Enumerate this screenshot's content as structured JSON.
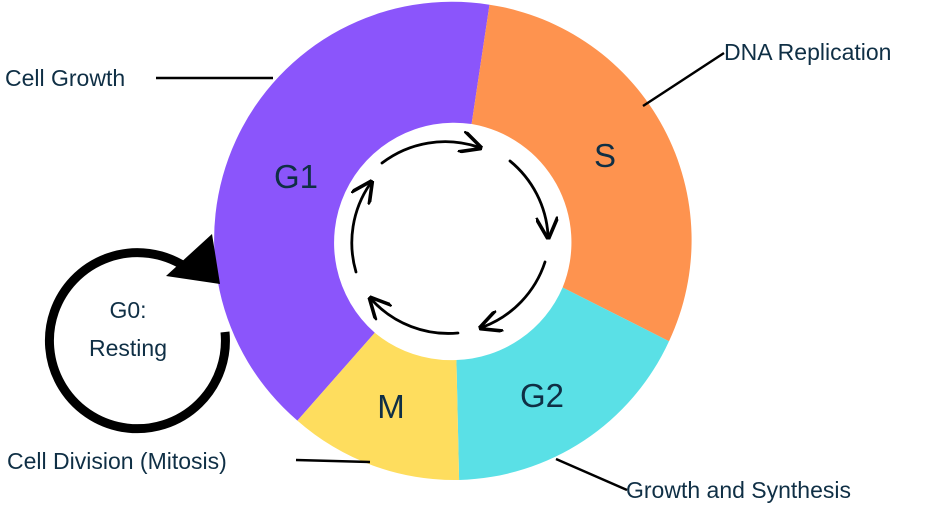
{
  "phases": [
    {
      "id": "g1",
      "label": "G1",
      "color": "#8b55fb"
    },
    {
      "id": "s",
      "label": "S",
      "color": "#fe934f"
    },
    {
      "id": "g2",
      "label": "G2",
      "color": "#5ae0e6"
    },
    {
      "id": "m",
      "label": "M",
      "color": "#fedd5e"
    }
  ],
  "annotations": {
    "g1": "Cell Growth",
    "s": "DNA Replication",
    "g2": "Growth and Synthesis",
    "m": "Cell Division (Mitosis)"
  },
  "g0": {
    "line1": "G0:",
    "line2": "Resting"
  }
}
